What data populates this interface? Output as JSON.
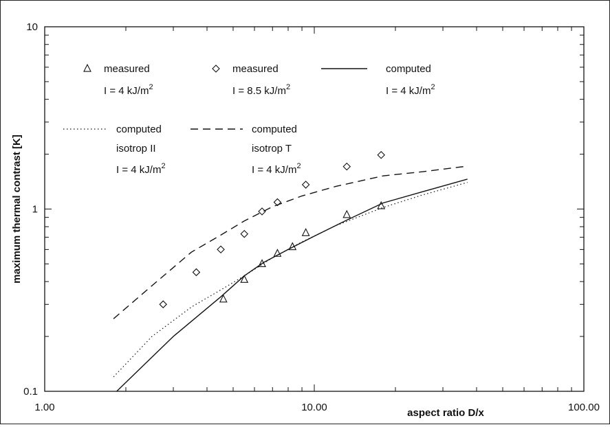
{
  "chart_data": {
    "type": "scatter",
    "xlabel": "aspect ratio D/x",
    "ylabel": "maximum thermal contrast [K]",
    "xscale": "log",
    "yscale": "log",
    "xlim": [
      1,
      100
    ],
    "ylim": [
      0.1,
      10
    ],
    "x_tick_labels": [
      "1.00",
      "10.00",
      "100.00"
    ],
    "y_tick_labels": [
      "0.1",
      "1",
      "10"
    ],
    "grid": false,
    "legend": [
      {
        "line1": "measured",
        "line2": "I = 4 kJ/m",
        "sup": "2",
        "marker": "triangle"
      },
      {
        "line1": "measured",
        "line2": "I = 8.5 kJ/m",
        "sup": "2",
        "marker": "diamond"
      },
      {
        "line1": "computed",
        "line2": "I = 4 kJ/m",
        "sup": "2",
        "marker": "solid"
      },
      {
        "line1": "computed",
        "line2": "isotrop II",
        "line3": "I = 4 kJ/m",
        "sup": "2",
        "marker": "dotted"
      },
      {
        "line1": "computed",
        "line2": "isotrop T",
        "line3": "I = 4 kJ/m",
        "sup": "2",
        "marker": "dashed"
      }
    ],
    "series": [
      {
        "style": "triangle",
        "x": [
          4.6,
          5.5,
          6.4,
          7.3,
          8.3,
          9.3,
          13.2,
          17.7
        ],
        "y": [
          0.32,
          0.41,
          0.5,
          0.57,
          0.62,
          0.74,
          0.93,
          1.04
        ]
      },
      {
        "style": "diamond",
        "x": [
          2.75,
          3.65,
          4.5,
          5.5,
          6.4,
          7.3,
          9.3,
          13.2,
          17.7
        ],
        "y": [
          0.3,
          0.45,
          0.6,
          0.73,
          0.97,
          1.09,
          1.36,
          1.71,
          1.98
        ]
      },
      {
        "style": "solid",
        "x": [
          1.85,
          3.0,
          4.5,
          5.5,
          6.5,
          8.0,
          10.0,
          13.0,
          18.0,
          25.0,
          37.0
        ],
        "y": [
          0.1,
          0.2,
          0.33,
          0.43,
          0.51,
          0.6,
          0.71,
          0.86,
          1.08,
          1.24,
          1.46
        ]
      },
      {
        "style": "dotted",
        "x": [
          1.8,
          2.5,
          3.5,
          4.5,
          5.5,
          7.0,
          9.0,
          12.0,
          18.0,
          25.0,
          37.0
        ],
        "y": [
          0.12,
          0.2,
          0.29,
          0.36,
          0.43,
          0.54,
          0.66,
          0.81,
          1.02,
          1.19,
          1.4
        ]
      },
      {
        "style": "dashed",
        "x": [
          1.8,
          2.5,
          3.5,
          4.5,
          5.5,
          7.0,
          9.0,
          12.0,
          18.0,
          25.0,
          37.0
        ],
        "y": [
          0.25,
          0.38,
          0.58,
          0.72,
          0.86,
          1.03,
          1.18,
          1.33,
          1.52,
          1.6,
          1.72
        ]
      }
    ]
  }
}
